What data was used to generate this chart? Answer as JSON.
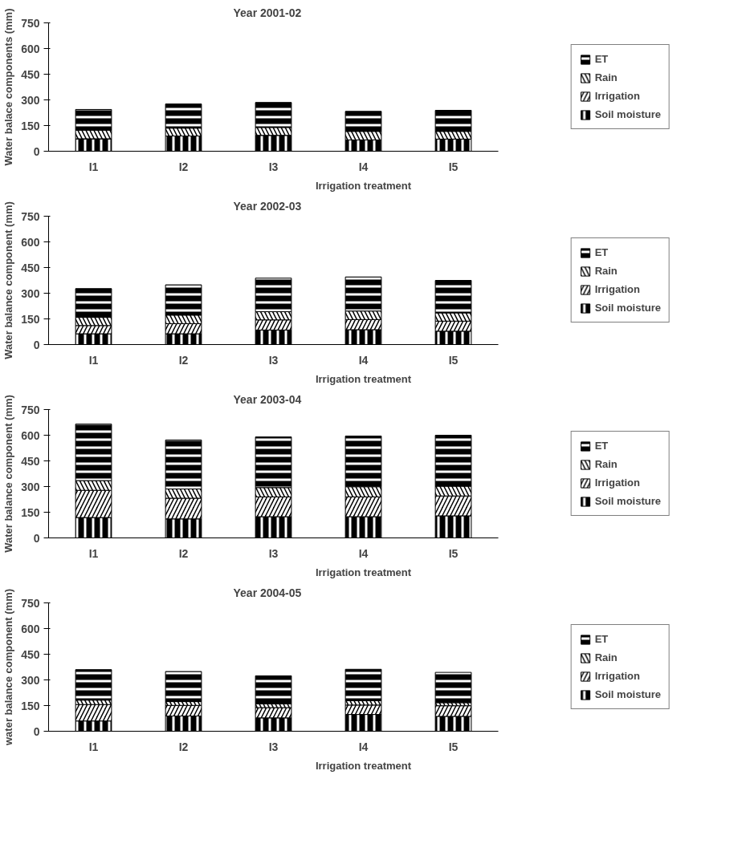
{
  "chart_data": [
    {
      "type": "bar",
      "title": "Year 2001-02",
      "xlabel": "Irrigation treatment",
      "ylabel": "Water balace components (mm)",
      "categories": [
        "I1",
        "I2",
        "I3",
        "I4",
        "I5"
      ],
      "stacked": true,
      "ylim": [
        0,
        750
      ],
      "yticks": [
        0,
        150,
        300,
        450,
        600,
        750
      ],
      "grid": false,
      "legend": "right",
      "series": [
        {
          "name": "Soil moisture",
          "color": "#000000",
          "values": [
            73,
            89,
            93,
            66,
            71
          ]
        },
        {
          "name": "Irrigation",
          "color": "#000000",
          "values": [
            0,
            0,
            0,
            0,
            0
          ]
        },
        {
          "name": "Rain",
          "color": "#000000",
          "values": [
            50,
            46,
            46,
            50,
            45
          ]
        },
        {
          "name": "ET",
          "color": "#000000",
          "values": [
            121,
            141,
            146,
            117,
            123
          ]
        }
      ]
    },
    {
      "type": "bar",
      "title": "Year 2002-03",
      "xlabel": "Irrigation treatment",
      "ylabel": "Water balance component (mm)",
      "categories": [
        "I1",
        "I2",
        "I3",
        "I4",
        "I5"
      ],
      "stacked": true,
      "ylim": [
        0,
        750
      ],
      "yticks": [
        0,
        150,
        300,
        450,
        600,
        750
      ],
      "grid": false,
      "legend": "right",
      "series": [
        {
          "name": "Soil moisture",
          "color": "#000000",
          "values": [
            63,
            63,
            85,
            87,
            78
          ]
        },
        {
          "name": "Irrigation",
          "color": "#000000",
          "values": [
            48,
            59,
            59,
            59,
            59
          ]
        },
        {
          "name": "Rain",
          "color": "#000000",
          "values": [
            48,
            50,
            48,
            50,
            48
          ]
        },
        {
          "name": "ET",
          "color": "#000000",
          "values": [
            168,
            177,
            196,
            199,
            190
          ]
        }
      ]
    },
    {
      "type": "bar",
      "title": "Year 2003-04",
      "xlabel": "Irrigation treatment",
      "ylabel": "Water balance component (mm)",
      "categories": [
        "I1",
        "I2",
        "I3",
        "I4",
        "I5"
      ],
      "stacked": true,
      "ylim": [
        0,
        750
      ],
      "yticks": [
        0,
        150,
        300,
        450,
        600,
        750
      ],
      "grid": false,
      "legend": "right",
      "series": [
        {
          "name": "Soil moisture",
          "color": "#000000",
          "values": [
            119,
            111,
            124,
            124,
            129
          ]
        },
        {
          "name": "Irrigation",
          "color": "#000000",
          "values": [
            159,
            121,
            116,
            116,
            116
          ]
        },
        {
          "name": "Rain",
          "color": "#000000",
          "values": [
            57,
            54,
            54,
            59,
            57
          ]
        },
        {
          "name": "ET",
          "color": "#000000",
          "values": [
            330,
            286,
            296,
            296,
            298
          ]
        }
      ]
    },
    {
      "type": "bar",
      "title": "Year 2004-05",
      "xlabel": "Irrigation treatment",
      "ylabel": "water balance component (mm)",
      "categories": [
        "I1",
        "I2",
        "I3",
        "I4",
        "I5"
      ],
      "stacked": true,
      "ylim": [
        0,
        750
      ],
      "yticks": [
        0,
        150,
        300,
        450,
        600,
        750
      ],
      "grid": false,
      "legend": "right",
      "series": [
        {
          "name": "Soil moisture",
          "color": "#000000",
          "values": [
            60,
            89,
            78,
            98,
            87
          ]
        },
        {
          "name": "Irrigation",
          "color": "#000000",
          "values": [
            96,
            62,
            60,
            55,
            62
          ]
        },
        {
          "name": "Rain",
          "color": "#000000",
          "values": [
            26,
            22,
            22,
            25,
            18
          ]
        },
        {
          "name": "ET",
          "color": "#000000",
          "values": [
            178,
            176,
            164,
            184,
            177
          ]
        }
      ]
    }
  ]
}
